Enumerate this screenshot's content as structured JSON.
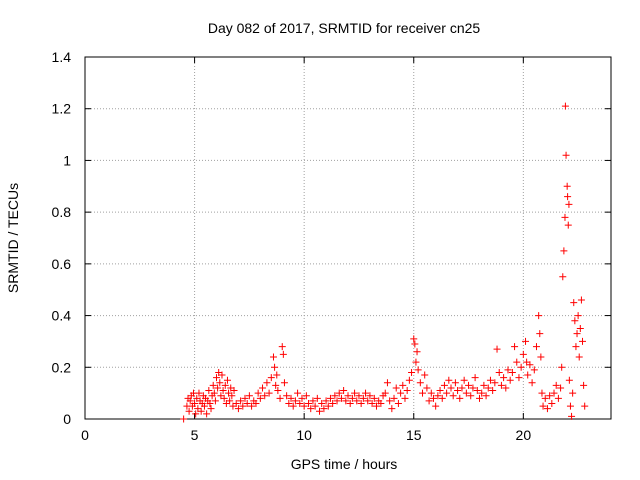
{
  "chart_data": {
    "type": "scatter",
    "title": "Day 082 of 2017, SRMTID for receiver cn25",
    "xlabel": "GPS time / hours",
    "ylabel": "SRMTID / TECUs",
    "xlim": [
      0,
      24
    ],
    "ylim": [
      0,
      1.4
    ],
    "x_ticks": [
      0,
      5,
      10,
      15,
      20
    ],
    "x_tick_labels": [
      "0",
      "5",
      "10",
      "15",
      "20"
    ],
    "y_ticks": [
      0,
      0.2,
      0.4,
      0.6,
      0.8,
      1.0,
      1.2,
      1.4
    ],
    "y_tick_labels": [
      "0",
      "0.2",
      "0.4",
      "0.6",
      "0.8",
      "1",
      "1.2",
      "1.4"
    ],
    "grid": true,
    "marker": "+",
    "series_color": "#ff0000",
    "series": [
      {
        "name": "SRMTID",
        "points": [
          [
            4.5,
            0.0
          ],
          [
            4.65,
            0.05
          ],
          [
            4.7,
            0.08
          ],
          [
            4.75,
            0.03
          ],
          [
            4.8,
            0.07
          ],
          [
            4.85,
            0.09
          ],
          [
            4.9,
            0.05
          ],
          [
            4.95,
            0.1
          ],
          [
            5.0,
            0.06
          ],
          [
            5.05,
            0.02
          ],
          [
            5.1,
            0.08
          ],
          [
            5.15,
            0.04
          ],
          [
            5.2,
            0.1
          ],
          [
            5.25,
            0.07
          ],
          [
            5.3,
            0.03
          ],
          [
            5.35,
            0.06
          ],
          [
            5.4,
            0.09
          ],
          [
            5.45,
            0.05
          ],
          [
            5.5,
            0.08
          ],
          [
            5.55,
            0.02
          ],
          [
            5.6,
            0.07
          ],
          [
            5.65,
            0.11
          ],
          [
            5.7,
            0.06
          ],
          [
            5.75,
            0.04
          ],
          [
            5.8,
            0.09
          ],
          [
            5.85,
            0.13
          ],
          [
            5.9,
            0.1
          ],
          [
            5.95,
            0.07
          ],
          [
            6.0,
            0.16
          ],
          [
            6.05,
            0.12
          ],
          [
            6.1,
            0.18
          ],
          [
            6.15,
            0.14
          ],
          [
            6.2,
            0.09
          ],
          [
            6.25,
            0.17
          ],
          [
            6.3,
            0.11
          ],
          [
            6.35,
            0.08
          ],
          [
            6.4,
            0.13
          ],
          [
            6.45,
            0.06
          ],
          [
            6.5,
            0.15
          ],
          [
            6.55,
            0.1
          ],
          [
            6.6,
            0.07
          ],
          [
            6.65,
            0.12
          ],
          [
            6.7,
            0.09
          ],
          [
            6.75,
            0.05
          ],
          [
            6.8,
            0.11
          ],
          [
            6.9,
            0.06
          ],
          [
            7.0,
            0.04
          ],
          [
            7.1,
            0.07
          ],
          [
            7.2,
            0.05
          ],
          [
            7.3,
            0.08
          ],
          [
            7.4,
            0.06
          ],
          [
            7.5,
            0.09
          ],
          [
            7.6,
            0.05
          ],
          [
            7.7,
            0.07
          ],
          [
            7.8,
            0.06
          ],
          [
            7.9,
            0.1
          ],
          [
            8.0,
            0.08
          ],
          [
            8.1,
            0.12
          ],
          [
            8.2,
            0.09
          ],
          [
            8.3,
            0.14
          ],
          [
            8.4,
            0.1
          ],
          [
            8.5,
            0.16
          ],
          [
            8.6,
            0.24
          ],
          [
            8.65,
            0.2
          ],
          [
            8.7,
            0.13
          ],
          [
            8.75,
            0.17
          ],
          [
            8.8,
            0.11
          ],
          [
            8.9,
            0.08
          ],
          [
            9.0,
            0.28
          ],
          [
            9.05,
            0.25
          ],
          [
            9.1,
            0.14
          ],
          [
            9.2,
            0.09
          ],
          [
            9.3,
            0.06
          ],
          [
            9.4,
            0.08
          ],
          [
            9.5,
            0.05
          ],
          [
            9.6,
            0.07
          ],
          [
            9.7,
            0.1
          ],
          [
            9.8,
            0.06
          ],
          [
            9.9,
            0.08
          ],
          [
            10.0,
            0.05
          ],
          [
            10.1,
            0.09
          ],
          [
            10.2,
            0.06
          ],
          [
            10.3,
            0.04
          ],
          [
            10.4,
            0.07
          ],
          [
            10.5,
            0.05
          ],
          [
            10.6,
            0.08
          ],
          [
            10.7,
            0.03
          ],
          [
            10.8,
            0.06
          ],
          [
            10.9,
            0.04
          ],
          [
            11.0,
            0.07
          ],
          [
            11.1,
            0.05
          ],
          [
            11.2,
            0.08
          ],
          [
            11.3,
            0.06
          ],
          [
            11.4,
            0.09
          ],
          [
            11.5,
            0.07
          ],
          [
            11.6,
            0.1
          ],
          [
            11.7,
            0.08
          ],
          [
            11.8,
            0.11
          ],
          [
            11.9,
            0.07
          ],
          [
            12.0,
            0.09
          ],
          [
            12.1,
            0.06
          ],
          [
            12.2,
            0.08
          ],
          [
            12.3,
            0.1
          ],
          [
            12.4,
            0.07
          ],
          [
            12.5,
            0.09
          ],
          [
            12.6,
            0.06
          ],
          [
            12.7,
            0.08
          ],
          [
            12.8,
            0.1
          ],
          [
            12.9,
            0.07
          ],
          [
            13.0,
            0.09
          ],
          [
            13.1,
            0.06
          ],
          [
            13.2,
            0.08
          ],
          [
            13.3,
            0.05
          ],
          [
            13.4,
            0.07
          ],
          [
            13.5,
            0.06
          ],
          [
            13.6,
            0.09
          ],
          [
            13.7,
            0.1
          ],
          [
            13.8,
            0.14
          ],
          [
            13.9,
            0.07
          ],
          [
            14.0,
            0.04
          ],
          [
            14.1,
            0.08
          ],
          [
            14.2,
            0.12
          ],
          [
            14.3,
            0.06
          ],
          [
            14.4,
            0.1
          ],
          [
            14.5,
            0.13
          ],
          [
            14.6,
            0.08
          ],
          [
            14.7,
            0.11
          ],
          [
            14.8,
            0.15
          ],
          [
            14.9,
            0.18
          ],
          [
            15.0,
            0.31
          ],
          [
            15.05,
            0.29
          ],
          [
            15.1,
            0.22
          ],
          [
            15.15,
            0.26
          ],
          [
            15.2,
            0.19
          ],
          [
            15.3,
            0.14
          ],
          [
            15.4,
            0.1
          ],
          [
            15.5,
            0.17
          ],
          [
            15.6,
            0.12
          ],
          [
            15.7,
            0.07
          ],
          [
            15.8,
            0.1
          ],
          [
            15.9,
            0.08
          ],
          [
            16.0,
            0.05
          ],
          [
            16.1,
            0.09
          ],
          [
            16.2,
            0.11
          ],
          [
            16.3,
            0.08
          ],
          [
            16.4,
            0.13
          ],
          [
            16.5,
            0.1
          ],
          [
            16.6,
            0.15
          ],
          [
            16.7,
            0.12
          ],
          [
            16.8,
            0.09
          ],
          [
            16.9,
            0.14
          ],
          [
            17.0,
            0.11
          ],
          [
            17.1,
            0.08
          ],
          [
            17.2,
            0.12
          ],
          [
            17.3,
            0.15
          ],
          [
            17.4,
            0.1
          ],
          [
            17.5,
            0.13
          ],
          [
            17.6,
            0.09
          ],
          [
            17.7,
            0.12
          ],
          [
            17.8,
            0.16
          ],
          [
            17.9,
            0.11
          ],
          [
            18.0,
            0.08
          ],
          [
            18.1,
            0.1
          ],
          [
            18.2,
            0.13
          ],
          [
            18.3,
            0.09
          ],
          [
            18.4,
            0.12
          ],
          [
            18.5,
            0.15
          ],
          [
            18.6,
            0.11
          ],
          [
            18.7,
            0.14
          ],
          [
            18.8,
            0.27
          ],
          [
            18.9,
            0.18
          ],
          [
            19.0,
            0.13
          ],
          [
            19.1,
            0.16
          ],
          [
            19.2,
            0.12
          ],
          [
            19.3,
            0.19
          ],
          [
            19.4,
            0.15
          ],
          [
            19.5,
            0.18
          ],
          [
            19.6,
            0.28
          ],
          [
            19.7,
            0.22
          ],
          [
            19.8,
            0.16
          ],
          [
            19.9,
            0.2
          ],
          [
            20.0,
            0.25
          ],
          [
            20.1,
            0.3
          ],
          [
            20.15,
            0.22
          ],
          [
            20.2,
            0.17
          ],
          [
            20.3,
            0.21
          ],
          [
            20.4,
            0.14
          ],
          [
            20.5,
            0.19
          ],
          [
            20.6,
            0.28
          ],
          [
            20.7,
            0.4
          ],
          [
            20.75,
            0.33
          ],
          [
            20.8,
            0.24
          ],
          [
            20.85,
            0.1
          ],
          [
            20.9,
            0.05
          ],
          [
            21.0,
            0.08
          ],
          [
            21.1,
            0.04
          ],
          [
            21.2,
            0.09
          ],
          [
            21.3,
            0.06
          ],
          [
            21.4,
            0.1
          ],
          [
            21.5,
            0.13
          ],
          [
            21.6,
            0.08
          ],
          [
            21.7,
            0.12
          ],
          [
            21.75,
            0.2
          ],
          [
            21.8,
            0.55
          ],
          [
            21.85,
            0.65
          ],
          [
            21.9,
            0.78
          ],
          [
            21.92,
            1.21
          ],
          [
            21.95,
            1.02
          ],
          [
            22.0,
            0.9
          ],
          [
            22.02,
            0.86
          ],
          [
            22.05,
            0.75
          ],
          [
            22.08,
            0.83
          ],
          [
            22.1,
            0.15
          ],
          [
            22.15,
            0.05
          ],
          [
            22.2,
            0.01
          ],
          [
            22.25,
            0.1
          ],
          [
            22.3,
            0.45
          ],
          [
            22.35,
            0.38
          ],
          [
            22.4,
            0.28
          ],
          [
            22.45,
            0.33
          ],
          [
            22.5,
            0.4
          ],
          [
            22.55,
            0.24
          ],
          [
            22.6,
            0.35
          ],
          [
            22.65,
            0.46
          ],
          [
            22.7,
            0.3
          ],
          [
            22.75,
            0.13
          ],
          [
            22.8,
            0.05
          ]
        ]
      }
    ]
  }
}
